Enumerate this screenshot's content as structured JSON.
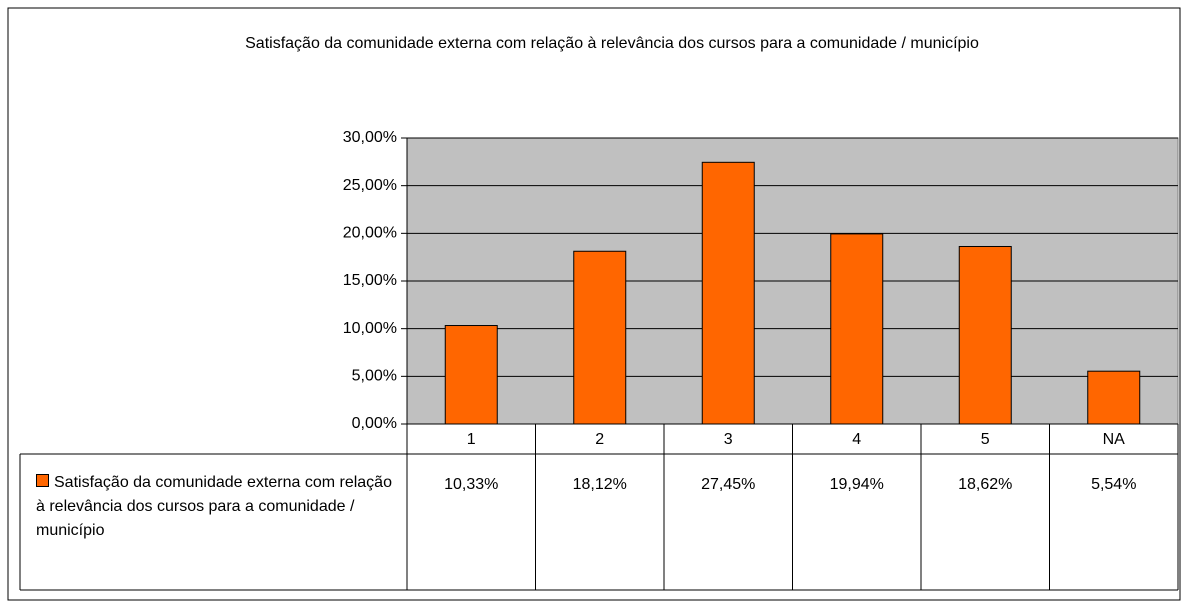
{
  "chart_data": {
    "type": "bar",
    "title": "Satisfação da comunidade externa com relação à relevância dos cursos para a comunidade / município",
    "categories": [
      "1",
      "2",
      "3",
      "4",
      "5",
      "NA"
    ],
    "series": [
      {
        "name": "Satisfação da comunidade externa com relação à relevância dos cursos para a comunidade / município",
        "color": "#ff6600",
        "values": [
          10.33,
          18.12,
          27.45,
          19.94,
          18.62,
          5.54
        ],
        "value_labels": [
          "10,33%",
          "18,12%",
          "27,45%",
          "19,94%",
          "18,62%",
          "5,54%"
        ]
      }
    ],
    "ylim": [
      0,
      30
    ],
    "yticks": [
      {
        "value": 0,
        "label": "0,00%"
      },
      {
        "value": 5,
        "label": "5,00%"
      },
      {
        "value": 10,
        "label": "10,00%"
      },
      {
        "value": 15,
        "label": "15,00%"
      },
      {
        "value": 20,
        "label": "20,00%"
      },
      {
        "value": 25,
        "label": "25,00%"
      },
      {
        "value": 30,
        "label": "30,00%"
      }
    ],
    "grid": true,
    "plot_background": "#c0c0c0"
  }
}
